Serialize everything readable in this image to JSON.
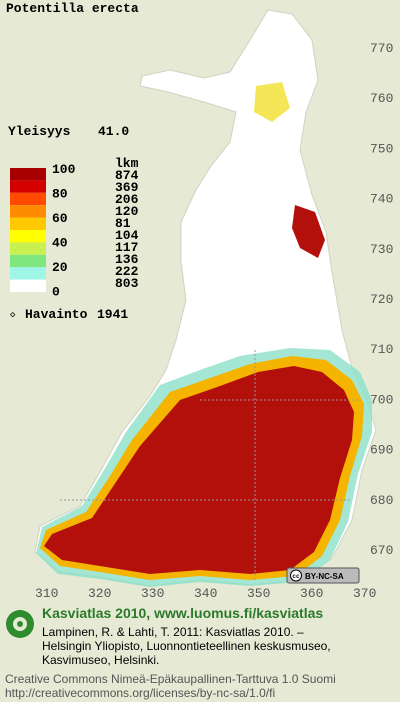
{
  "title": "Potentilla erecta",
  "frequency": {
    "label": "Yleisyys",
    "value": "41.0"
  },
  "legend": {
    "scale_labels": [
      100,
      80,
      60,
      40,
      20,
      0
    ],
    "count_header": "lkm",
    "counts": [
      874,
      369,
      206,
      120,
      81,
      104,
      117,
      136,
      222,
      803
    ],
    "observation": {
      "label": "Havainto",
      "year": 1941
    }
  },
  "grid": {
    "northing": [
      770,
      760,
      750,
      740,
      730,
      720,
      710,
      700,
      690,
      680,
      670
    ],
    "easting": [
      310,
      320,
      330,
      340,
      350,
      360,
      370
    ]
  },
  "badge": {
    "icon": "cc",
    "text": "BY-NC-SA"
  },
  "footer": {
    "heading": "Kasviatlas 2010, www.luomus.fi/kasviatlas",
    "citation": [
      "Lampinen, R. & Lahti, T. 2011: Kasviatlas 2010. –",
      "Helsingin Yliopisto, Luonnontieteellinen keskusmuseo,",
      "Kasvimuseo, Helsinki."
    ],
    "license": [
      "Creative Commons Nimeä-Epäkaupallinen-Tarttuva 1.0 Suomi",
      "http://creativecommons.org/licenses/by-nc-sa/1.0/fi"
    ]
  }
}
